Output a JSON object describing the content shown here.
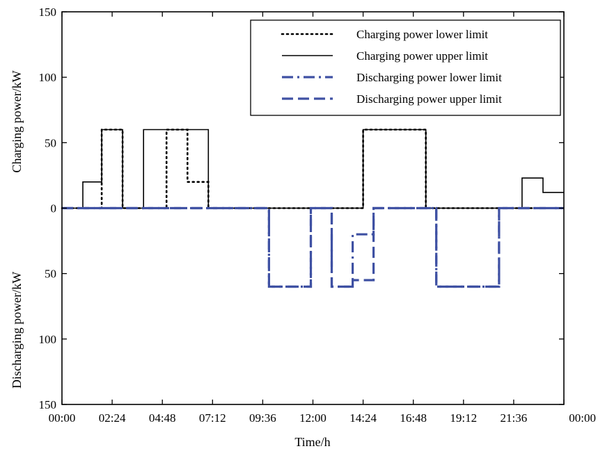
{
  "chart_data": {
    "type": "line",
    "xlabel": "Time/h",
    "ylabel_top": "Charging power/kW",
    "ylabel_bottom": "Discharging power/kW",
    "x_ticks": [
      "00:00",
      "02:24",
      "04:48",
      "07:12",
      "09:36",
      "12:00",
      "14:24",
      "16:48",
      "19:12",
      "21:36",
      "00:00"
    ],
    "y_ticks": [
      {
        "label": "150",
        "value": 150
      },
      {
        "label": "100",
        "value": 100
      },
      {
        "label": "50",
        "value": 50
      },
      {
        "label": "0",
        "value": 0
      },
      {
        "label": "50",
        "value": -50
      },
      {
        "label": "100",
        "value": -100
      },
      {
        "label": "150",
        "value": -150
      }
    ],
    "xlim": [
      0,
      24
    ],
    "ylim": [
      -150,
      150
    ],
    "grid": false,
    "legend_position": "top-right",
    "series": [
      {
        "name": "Charging power lower limit",
        "style": "dotted",
        "color": "#000000",
        "x": [
          0,
          1.9,
          1.9,
          2.9,
          2.9,
          5.0,
          5.0,
          6.0,
          6.0,
          7.0,
          7.0,
          14.4,
          14.4,
          17.4,
          17.4,
          24
        ],
        "y": [
          0,
          0,
          60,
          60,
          0,
          0,
          60,
          60,
          20,
          20,
          0,
          0,
          60,
          60,
          0,
          0
        ]
      },
      {
        "name": "Charging power upper limit",
        "style": "solid",
        "color": "#000000",
        "x": [
          0,
          1.0,
          1.0,
          1.9,
          1.9,
          2.9,
          2.9,
          3.9,
          3.9,
          7.0,
          7.0,
          14.4,
          14.4,
          17.4,
          17.4,
          22.0,
          22.0,
          23.0,
          23.0,
          24.0
        ],
        "y": [
          0,
          0,
          20,
          20,
          60,
          60,
          0,
          0,
          60,
          60,
          0,
          0,
          60,
          60,
          0,
          0,
          23,
          23,
          12,
          12
        ]
      },
      {
        "name": "Discharging power lower limit",
        "style": "dashdot",
        "color": "#3f51a3",
        "x": [
          0,
          9.9,
          9.9,
          11.9,
          11.9,
          12.9,
          12.9,
          13.9,
          13.9,
          14.9,
          14.9,
          17.9,
          17.9,
          20.9,
          20.9,
          24
        ],
        "y": [
          0,
          0,
          -60,
          -60,
          0,
          0,
          -60,
          -60,
          -20,
          -20,
          0,
          0,
          -60,
          -60,
          0,
          0
        ]
      },
      {
        "name": "Discharging power upper limit",
        "style": "dashed",
        "color": "#3f51a3",
        "x": [
          0,
          9.9,
          9.9,
          11.9,
          11.9,
          12.9,
          12.9,
          13.9,
          13.9,
          14.9,
          14.9,
          17.9,
          17.9,
          20.9,
          20.9,
          24
        ],
        "y": [
          0,
          0,
          -60,
          -60,
          0,
          0,
          -60,
          -60,
          -55,
          -55,
          0,
          0,
          -60,
          -60,
          0,
          0
        ]
      }
    ]
  }
}
